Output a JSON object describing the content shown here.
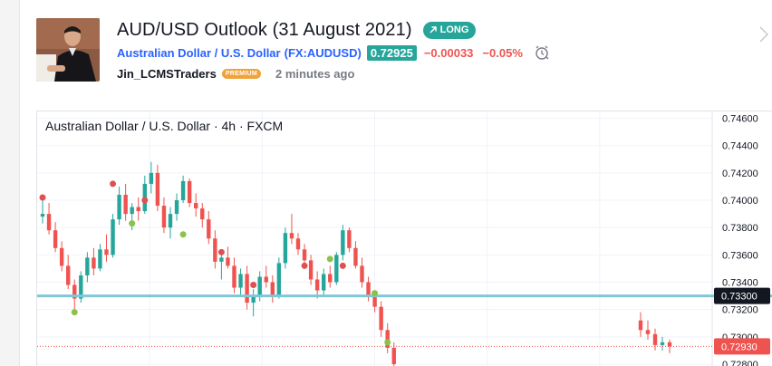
{
  "idea": {
    "title": "AUD/USD Outlook (31 August 2021)",
    "direction": "LONG",
    "symbol_name": "Australian Dollar / U.S. Dollar",
    "symbol_ticker": "(FX:AUDUSD)",
    "price": "0.72925",
    "change": "−0.00033",
    "change_pct": "−0.05%",
    "author": "Jin_LCMSTraders",
    "author_badge": "PREMIUM",
    "published": "2 minutes ago"
  },
  "icons": [
    "arrow-up-right-icon",
    "alarm-clock-icon",
    "chevron-right-icon"
  ],
  "colors": {
    "accent_blue": "#2962ff",
    "up": "#26a69a",
    "down": "#ef5350",
    "premium": "#f0a33a",
    "support_line": "#7ec8d6",
    "signal_buy": "#8bc34a",
    "signal_sell": "#e05050"
  },
  "chart_data": {
    "type": "candlestick",
    "title": "Australian Dollar / U.S. Dollar · 4h · FXCM",
    "y_ticks": [
      "0.74600",
      "0.74400",
      "0.74200",
      "0.74000",
      "0.73800",
      "0.73600",
      "0.73400",
      "0.73200",
      "0.73000",
      "0.72800"
    ],
    "ylim": [
      0.7278,
      0.7465
    ],
    "horizontal_line": {
      "value": 0.733,
      "label": "0.73300"
    },
    "last_price": {
      "value": 0.7293,
      "label": "0.72930"
    },
    "candles": [
      [
        0.7388,
        0.74,
        0.7383,
        0.739
      ],
      [
        0.739,
        0.7398,
        0.7375,
        0.7378
      ],
      [
        0.7378,
        0.7384,
        0.7362,
        0.7365
      ],
      [
        0.7365,
        0.737,
        0.7348,
        0.7352
      ],
      [
        0.7352,
        0.736,
        0.7335,
        0.7338
      ],
      [
        0.7338,
        0.7342,
        0.732,
        0.7328
      ],
      [
        0.7328,
        0.7348,
        0.7325,
        0.7345
      ],
      [
        0.7345,
        0.7362,
        0.734,
        0.7358
      ],
      [
        0.7358,
        0.7365,
        0.7345,
        0.735
      ],
      [
        0.735,
        0.7368,
        0.7348,
        0.7364
      ],
      [
        0.7364,
        0.7375,
        0.7355,
        0.736
      ],
      [
        0.736,
        0.739,
        0.7358,
        0.7386
      ],
      [
        0.7386,
        0.741,
        0.7382,
        0.7404
      ],
      [
        0.7404,
        0.7412,
        0.7385,
        0.739
      ],
      [
        0.739,
        0.7398,
        0.7378,
        0.7395
      ],
      [
        0.7395,
        0.7402,
        0.7385,
        0.7392
      ],
      [
        0.7392,
        0.7418,
        0.739,
        0.7412
      ],
      [
        0.7412,
        0.7428,
        0.7405,
        0.742
      ],
      [
        0.742,
        0.7426,
        0.7392,
        0.7396
      ],
      [
        0.7396,
        0.7402,
        0.7376,
        0.738
      ],
      [
        0.738,
        0.7395,
        0.7372,
        0.739
      ],
      [
        0.739,
        0.7405,
        0.7385,
        0.74
      ],
      [
        0.74,
        0.7418,
        0.7398,
        0.7414
      ],
      [
        0.7414,
        0.7416,
        0.7395,
        0.7398
      ],
      [
        0.7398,
        0.7405,
        0.7388,
        0.7394
      ],
      [
        0.7394,
        0.7398,
        0.738,
        0.7386
      ],
      [
        0.7386,
        0.7392,
        0.7368,
        0.7372
      ],
      [
        0.7372,
        0.7378,
        0.735,
        0.7355
      ],
      [
        0.7355,
        0.7362,
        0.7342,
        0.7358
      ],
      [
        0.7358,
        0.7366,
        0.735,
        0.7352
      ],
      [
        0.7352,
        0.7358,
        0.7332,
        0.7336
      ],
      [
        0.7336,
        0.735,
        0.733,
        0.7346
      ],
      [
        0.7346,
        0.7352,
        0.732,
        0.7325
      ],
      [
        0.7325,
        0.7335,
        0.7315,
        0.733
      ],
      [
        0.733,
        0.7348,
        0.7326,
        0.7344
      ],
      [
        0.7344,
        0.7352,
        0.7336,
        0.734
      ],
      [
        0.734,
        0.7345,
        0.7325,
        0.733
      ],
      [
        0.733,
        0.7358,
        0.7328,
        0.7354
      ],
      [
        0.7354,
        0.738,
        0.735,
        0.7376
      ],
      [
        0.7376,
        0.739,
        0.7368,
        0.7372
      ],
      [
        0.7372,
        0.7376,
        0.736,
        0.7364
      ],
      [
        0.7364,
        0.7368,
        0.735,
        0.7356
      ],
      [
        0.7356,
        0.736,
        0.7338,
        0.7342
      ],
      [
        0.7342,
        0.7348,
        0.7328,
        0.7334
      ],
      [
        0.7334,
        0.735,
        0.733,
        0.7346
      ],
      [
        0.7346,
        0.7352,
        0.7336,
        0.734
      ],
      [
        0.734,
        0.7362,
        0.7338,
        0.736
      ],
      [
        0.736,
        0.7382,
        0.7356,
        0.7378
      ],
      [
        0.7378,
        0.738,
        0.7362,
        0.7365
      ],
      [
        0.7365,
        0.737,
        0.735,
        0.7352
      ],
      [
        0.7352,
        0.7358,
        0.7336,
        0.734
      ],
      [
        0.734,
        0.7344,
        0.7326,
        0.733
      ],
      [
        0.733,
        0.7334,
        0.7318,
        0.7322
      ],
      [
        0.7322,
        0.7326,
        0.73,
        0.7305
      ],
      [
        0.7305,
        0.731,
        0.7288,
        0.7292
      ],
      [
        0.7292,
        0.7296,
        0.7276,
        0.728
      ],
      [
        0.7312,
        0.7318,
        0.73,
        0.7305
      ],
      [
        0.7305,
        0.7312,
        0.7298,
        0.7302
      ],
      [
        0.7302,
        0.7306,
        0.729,
        0.7294
      ],
      [
        0.7294,
        0.73,
        0.729,
        0.7296
      ],
      [
        0.7296,
        0.7298,
        0.7288,
        0.7293
      ]
    ],
    "sell_signals": [
      [
        0,
        0.7402
      ],
      [
        11,
        0.7412
      ],
      [
        16,
        0.74
      ],
      [
        28,
        0.7362
      ],
      [
        33,
        0.7338
      ],
      [
        41,
        0.7352
      ],
      [
        47,
        0.7352
      ]
    ],
    "buy_signals": [
      [
        5,
        0.7318
      ],
      [
        14,
        0.7383
      ],
      [
        22,
        0.7375
      ],
      [
        45,
        0.7357
      ],
      [
        52,
        0.7332
      ],
      [
        54,
        0.7296
      ]
    ]
  }
}
